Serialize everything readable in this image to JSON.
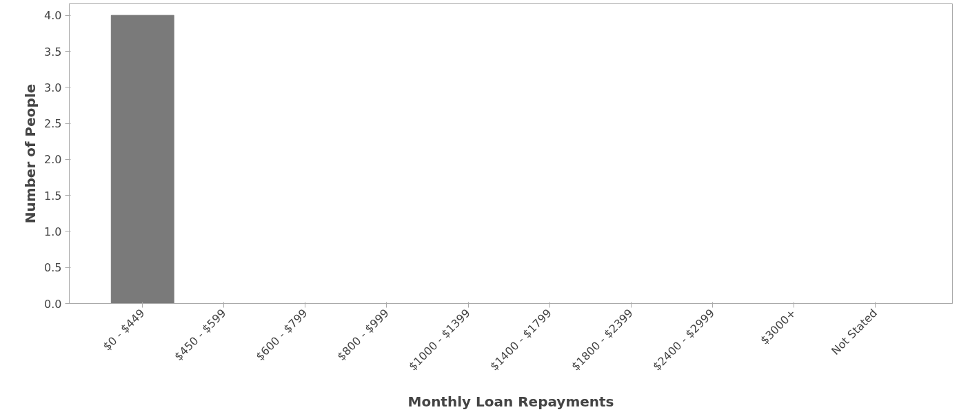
{
  "chart_data": {
    "type": "bar",
    "xlabel": "Monthly Loan Repayments",
    "ylabel": "Number of People",
    "categories": [
      "$0 - $449",
      "$450 - $599",
      "$600 - $799",
      "$800 - $999",
      "$1000 - $1399",
      "$1400 - $1799",
      "$1800 - $2399",
      "$2400 - $2999",
      "$3000+",
      "Not Stated"
    ],
    "values": [
      4,
      0,
      0,
      0,
      0,
      0,
      0,
      0,
      0,
      0
    ],
    "color": "#7a7a7a",
    "ylim": [
      0,
      4.16
    ],
    "yticks": [
      {
        "value": 0,
        "label": "0.0"
      },
      {
        "value": 0.5,
        "label": "0.5"
      },
      {
        "value": 1,
        "label": "1.0"
      },
      {
        "value": 1.5,
        "label": "1.5"
      },
      {
        "value": 2,
        "label": "2.0"
      },
      {
        "value": 2.5,
        "label": "2.5"
      },
      {
        "value": 3,
        "label": "3.0"
      },
      {
        "value": 3.5,
        "label": "3.5"
      },
      {
        "value": 4,
        "label": "4.0"
      }
    ],
    "grid": false
  }
}
